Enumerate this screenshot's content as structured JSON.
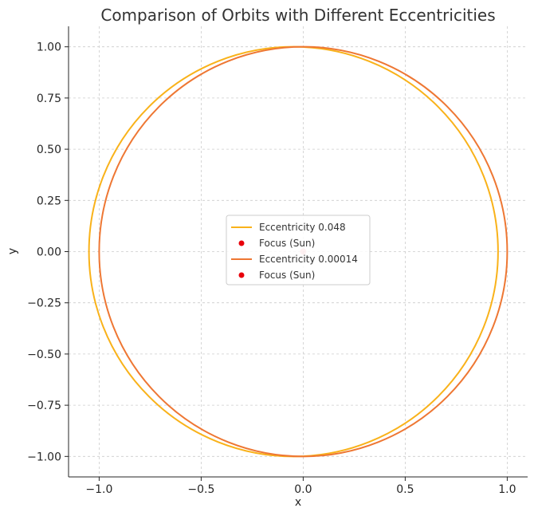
{
  "chart_data": {
    "type": "line",
    "title": "Comparison of Orbits with Different Eccentricities",
    "xlabel": "x",
    "ylabel": "y",
    "xlim": [
      -1.15,
      1.1
    ],
    "ylim": [
      -1.1,
      1.1
    ],
    "xticks": [
      -1.0,
      -0.5,
      0.0,
      0.5,
      1.0
    ],
    "xtick_labels": [
      "−1.0",
      "−0.5",
      "0.0",
      "0.5",
      "1.0"
    ],
    "yticks": [
      1.0,
      0.75,
      0.5,
      0.25,
      0.0,
      -0.25,
      -0.5,
      -0.75,
      -1.0
    ],
    "ytick_labels": [
      "1.00",
      "0.75",
      "0.50",
      "0.25",
      "0.00",
      "−0.25",
      "−0.50",
      "−0.75",
      "−1.00"
    ],
    "grid": true,
    "legend_position": "center",
    "series": [
      {
        "name": "Eccentricity 0.048",
        "kind": "orbit",
        "x_range": [
          -1.05,
          0.955
        ],
        "semi_minor": 1.0,
        "color": "#f9b21a"
      },
      {
        "name": "Focus (Sun)",
        "kind": "point",
        "x": 0.0,
        "y": 0.0,
        "color": "#e8000b"
      },
      {
        "name": "Eccentricity 0.00014",
        "kind": "orbit",
        "x_range": [
          -1.0,
          1.0
        ],
        "semi_minor": 1.0,
        "color": "#ee7733"
      },
      {
        "name": "Focus (Sun)",
        "kind": "point",
        "x": 0.0,
        "y": 0.0,
        "color": "#e8000b"
      }
    ]
  }
}
